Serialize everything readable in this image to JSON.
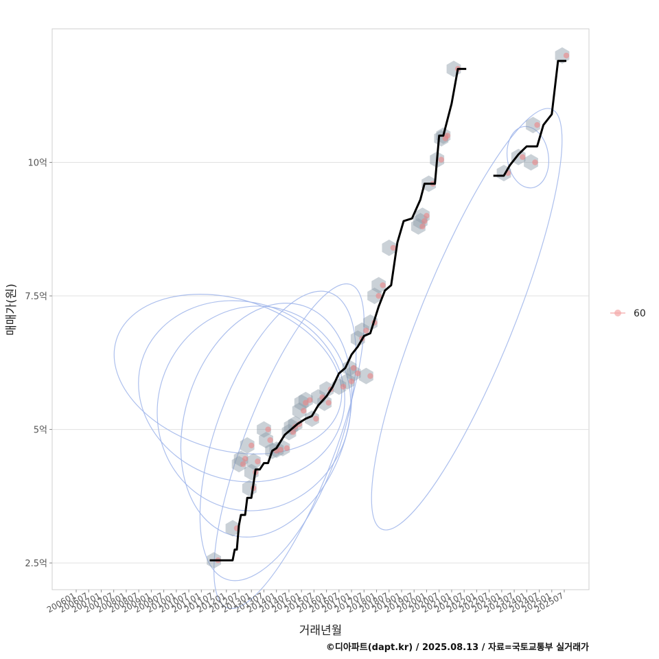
{
  "chart_data": {
    "type": "line",
    "xlabel": "거래년월",
    "ylabel": "매매가(원)",
    "caption": "©디아파트(dapt.kr) / 2025.08.13 / 자료=국토교통부 실거래가",
    "x_tick_labels": [
      "200601",
      "200607",
      "200701",
      "200707",
      "200801",
      "200807",
      "200901",
      "200907",
      "201001",
      "201007",
      "201101",
      "201107",
      "201201",
      "201207",
      "201301",
      "201307",
      "201401",
      "201407",
      "201501",
      "201507",
      "201601",
      "201607",
      "201701",
      "201707",
      "201801",
      "201807",
      "201901",
      "201907",
      "202001",
      "202007",
      "202101",
      "202107",
      "202201",
      "202207",
      "202301",
      "202307",
      "202401",
      "202407",
      "202501",
      "202507"
    ],
    "y_ticks": [
      {
        "value": 2.5,
        "label": "2.5억"
      },
      {
        "value": 5,
        "label": "5억"
      },
      {
        "value": 7.5,
        "label": "7.5억"
      },
      {
        "value": 10,
        "label": "10억"
      }
    ],
    "ylim": [
      2.0,
      12.5
    ],
    "grid": "horizontal",
    "legend": {
      "position": "right",
      "entries": [
        {
          "label": "60",
          "color": "#f4a7a7"
        }
      ]
    },
    "colors": {
      "line": "#000000",
      "points": "#f08080",
      "hex": "#8a9aa6",
      "contour": "#9db4ea",
      "grid": "#e0e0e0"
    },
    "series": [
      {
        "name": "60",
        "kind": "points",
        "points": [
          [
            "2011-09",
            2.55
          ],
          [
            "2012-06",
            3.15
          ],
          [
            "2012-09",
            4.35
          ],
          [
            "2012-10",
            4.45
          ],
          [
            "2013-01",
            4.7
          ],
          [
            "2013-02",
            3.9
          ],
          [
            "2013-03",
            4.2
          ],
          [
            "2013-04",
            4.4
          ],
          [
            "2013-09",
            5.0
          ],
          [
            "2013-10",
            4.8
          ],
          [
            "2014-01",
            4.6
          ],
          [
            "2014-03",
            4.62
          ],
          [
            "2014-06",
            4.65
          ],
          [
            "2014-09",
            4.95
          ],
          [
            "2014-10",
            5.05
          ],
          [
            "2014-12",
            5.1
          ],
          [
            "2015-02",
            5.35
          ],
          [
            "2015-03",
            5.5
          ],
          [
            "2015-05",
            5.55
          ],
          [
            "2015-08",
            5.2
          ],
          [
            "2015-11",
            5.6
          ],
          [
            "2016-02",
            5.5
          ],
          [
            "2016-03",
            5.75
          ],
          [
            "2016-09",
            5.8
          ],
          [
            "2017-01",
            5.9
          ],
          [
            "2017-02",
            6.15
          ],
          [
            "2017-04",
            6.05
          ],
          [
            "2017-06",
            6.7
          ],
          [
            "2017-08",
            6.85
          ],
          [
            "2017-10",
            6.0
          ],
          [
            "2017-12",
            7.0
          ],
          [
            "2018-02",
            7.5
          ],
          [
            "2018-04",
            7.7
          ],
          [
            "2018-09",
            8.4
          ],
          [
            "2019-11",
            8.8
          ],
          [
            "2019-12",
            8.9
          ],
          [
            "2020-01",
            9.0
          ],
          [
            "2020-04",
            9.6
          ],
          [
            "2020-08",
            10.05
          ],
          [
            "2020-10",
            10.45
          ],
          [
            "2020-11",
            10.5
          ],
          [
            "2021-04",
            11.75
          ],
          [
            "2023-04",
            9.8
          ],
          [
            "2023-11",
            10.1
          ],
          [
            "2024-05",
            10.0
          ],
          [
            "2024-06",
            10.7
          ],
          [
            "2025-08",
            12.0
          ]
        ]
      },
      {
        "name": "",
        "kind": "step-line",
        "segments": [
          [
            [
              "2011-05",
              2.55
            ],
            [
              "2011-07",
              2.55
            ],
            [
              "2012-02",
              2.55
            ],
            [
              "2012-04",
              2.55
            ],
            [
              "2012-05",
              2.75
            ],
            [
              "2012-06",
              2.75
            ],
            [
              "2012-07",
              3.2
            ],
            [
              "2012-08",
              3.4
            ],
            [
              "2012-10",
              3.4
            ],
            [
              "2012-11",
              3.72
            ],
            [
              "2013-01",
              3.72
            ],
            [
              "2013-03",
              4.25
            ],
            [
              "2013-05",
              4.25
            ],
            [
              "2013-07",
              4.37
            ],
            [
              "2013-09",
              4.37
            ],
            [
              "2013-11",
              4.6
            ],
            [
              "2014-01",
              4.65
            ],
            [
              "2014-05",
              4.9
            ],
            [
              "2014-08",
              5.0
            ],
            [
              "2014-11",
              5.1
            ],
            [
              "2015-03",
              5.2
            ],
            [
              "2015-06",
              5.25
            ],
            [
              "2015-09",
              5.45
            ],
            [
              "2016-01",
              5.62
            ],
            [
              "2016-04",
              5.8
            ],
            [
              "2016-07",
              6.05
            ],
            [
              "2016-10",
              6.15
            ],
            [
              "2017-01",
              6.4
            ],
            [
              "2017-04",
              6.55
            ],
            [
              "2017-07",
              6.75
            ],
            [
              "2017-10",
              6.8
            ],
            [
              "2018-02",
              7.3
            ],
            [
              "2018-05",
              7.6
            ],
            [
              "2018-08",
              7.7
            ],
            [
              "2018-11",
              8.5
            ],
            [
              "2019-02",
              8.9
            ],
            [
              "2019-06",
              8.95
            ],
            [
              "2019-10",
              9.3
            ],
            [
              "2019-12",
              9.6
            ],
            [
              "2020-05",
              9.6
            ],
            [
              "2020-07",
              10.5
            ],
            [
              "2020-09",
              10.5
            ],
            [
              "2021-01",
              11.1
            ],
            [
              "2021-04",
              11.75
            ],
            [
              "2021-08",
              11.75
            ]
          ],
          [
            [
              "2022-09",
              9.75
            ],
            [
              "2023-02",
              9.75
            ],
            [
              "2023-05",
              9.95
            ],
            [
              "2023-09",
              10.15
            ],
            [
              "2024-01",
              10.3
            ],
            [
              "2024-06",
              10.3
            ],
            [
              "2024-09",
              10.7
            ],
            [
              "2025-01",
              10.9
            ],
            [
              "2025-04",
              11.9
            ],
            [
              "2025-08",
              11.9
            ]
          ]
        ]
      }
    ]
  }
}
